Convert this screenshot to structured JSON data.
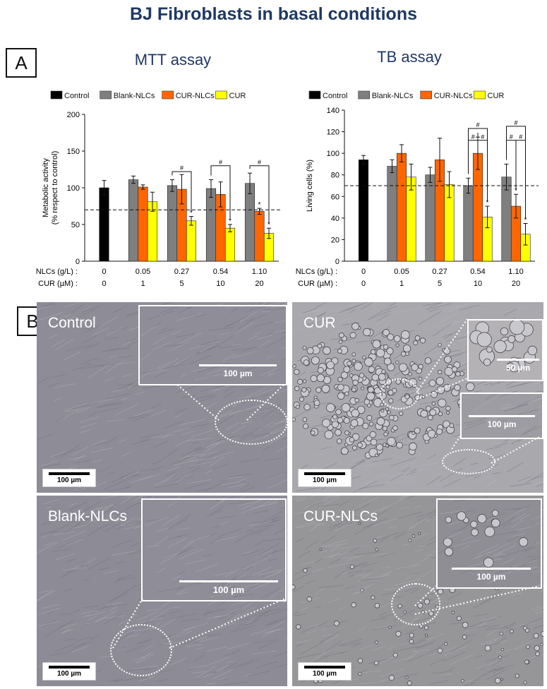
{
  "title": "BJ Fibroblasts in basal conditions",
  "panels": {
    "a": "A",
    "b": "B"
  },
  "legend": [
    "Control",
    "Blank-NLCs",
    "CUR-NLCs",
    "CUR"
  ],
  "colors": {
    "control": "#000000",
    "blank": "#7f7f7f",
    "curnlc": "#ff6600",
    "cur": "#ffff00",
    "title": "#1f3864"
  },
  "x_labels": {
    "nlc_label": "NLCs (g/L)",
    "cur_label": "CUR (µM)",
    "nlc_values": [
      "0",
      "0.05",
      "0.27",
      "0.54",
      "1.10"
    ],
    "cur_values": [
      "0",
      "1",
      "5",
      "10",
      "20"
    ]
  },
  "chart_data": [
    {
      "type": "bar",
      "title": "MTT assay",
      "ylabel": "Metabolic activity\n(% respect to control)",
      "ylim": [
        0,
        200
      ],
      "yticks": [
        0,
        50,
        100,
        150,
        200
      ],
      "reference_line": 70,
      "series": [
        {
          "name": "Control",
          "values": [
            100,
            null,
            null,
            null,
            null
          ],
          "errors": [
            10,
            null,
            null,
            null,
            null
          ]
        },
        {
          "name": "Blank-NLCs",
          "values": [
            null,
            111,
            103,
            99,
            106
          ],
          "errors": [
            null,
            5,
            8,
            12,
            14
          ]
        },
        {
          "name": "CUR-NLCs",
          "values": [
            null,
            101,
            98,
            91,
            68
          ],
          "errors": [
            null,
            3,
            20,
            17,
            4
          ]
        },
        {
          "name": "CUR",
          "values": [
            null,
            81,
            55,
            45,
            38
          ],
          "errors": [
            null,
            13,
            6,
            5,
            7
          ]
        }
      ],
      "stars": [
        {
          "group": 2,
          "series": 3
        },
        {
          "group": 3,
          "series": 3
        },
        {
          "group": 4,
          "series": 2
        },
        {
          "group": 4,
          "series": 3
        }
      ],
      "hash_brackets": [
        {
          "group": 2,
          "from": 1,
          "to": 3,
          "y": 122,
          "label": "#"
        },
        {
          "group": 3,
          "from": 1,
          "to": 3,
          "y": 130,
          "label": "#"
        },
        {
          "group": 4,
          "from": 1,
          "to": 3,
          "y": 130,
          "label": "#"
        }
      ]
    },
    {
      "type": "bar",
      "title": "TB assay",
      "ylabel": "Living cells (%)",
      "ylim": [
        0,
        140
      ],
      "yticks": [
        0,
        20,
        40,
        60,
        80,
        100,
        120,
        140
      ],
      "reference_line": 70,
      "series": [
        {
          "name": "Control",
          "values": [
            94,
            null,
            null,
            null,
            null
          ],
          "errors": [
            4,
            null,
            null,
            null,
            null
          ]
        },
        {
          "name": "Blank-NLCs",
          "values": [
            null,
            88,
            80,
            70,
            78
          ],
          "errors": [
            null,
            6,
            7,
            7,
            12
          ]
        },
        {
          "name": "CUR-NLCs",
          "values": [
            null,
            100,
            94,
            100,
            51
          ],
          "errors": [
            null,
            8,
            20,
            15,
            11
          ]
        },
        {
          "name": "CUR",
          "values": [
            null,
            78,
            71,
            41,
            25
          ],
          "errors": [
            null,
            12,
            12,
            10,
            10
          ]
        }
      ],
      "stars": [
        {
          "group": 3,
          "series": 3
        },
        {
          "group": 4,
          "series": 2
        },
        {
          "group": 4,
          "series": 3
        }
      ],
      "hash_brackets": [
        {
          "group": 3,
          "from": 1,
          "to": 2,
          "y": 112,
          "label": "#"
        },
        {
          "group": 3,
          "from": 2,
          "to": 3,
          "y": 112,
          "label": "#"
        },
        {
          "group": 3,
          "from": 1,
          "to": 3,
          "y": 123,
          "label": "#"
        },
        {
          "group": 4,
          "from": 1,
          "to": 2,
          "y": 112,
          "label": "#"
        },
        {
          "group": 4,
          "from": 2,
          "to": 3,
          "y": 112,
          "label": "#"
        },
        {
          "group": 4,
          "from": 1,
          "to": 3,
          "y": 125,
          "label": "#"
        }
      ]
    }
  ],
  "micrographs": [
    {
      "label": "Control",
      "inset_scale": "100 µm",
      "scale": "100 µm",
      "tint": "#8e8c96"
    },
    {
      "label": "CUR",
      "inset_scale": "50 µm",
      "inset2_scale": "100 µm",
      "scale": "100 µm",
      "tint": "#a9a8ad"
    },
    {
      "label": "Blank-NLCs",
      "inset_scale": "100 µm",
      "scale": "100 µm",
      "tint": "#8d8b95"
    },
    {
      "label": "CUR-NLCs",
      "inset_scale": "100 µm",
      "scale": "100 µm",
      "tint": "#969598"
    }
  ]
}
